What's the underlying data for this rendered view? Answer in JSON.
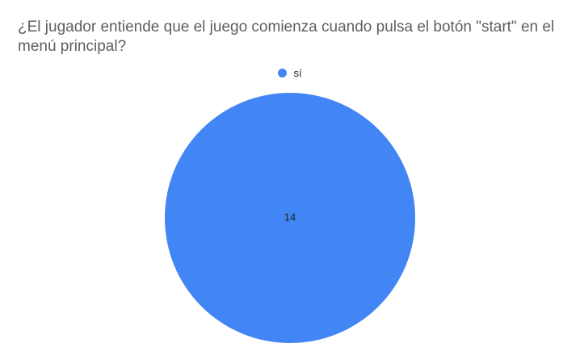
{
  "chart_data": {
    "type": "pie",
    "title": "¿El jugador entiende que el juego comienza cuando pulsa el botón \"start\" en el menú principal?",
    "categories": [
      "sí"
    ],
    "values": [
      14
    ],
    "data_labels": [
      "14"
    ],
    "colors": [
      "#4285f4"
    ],
    "legend_position": "top"
  }
}
